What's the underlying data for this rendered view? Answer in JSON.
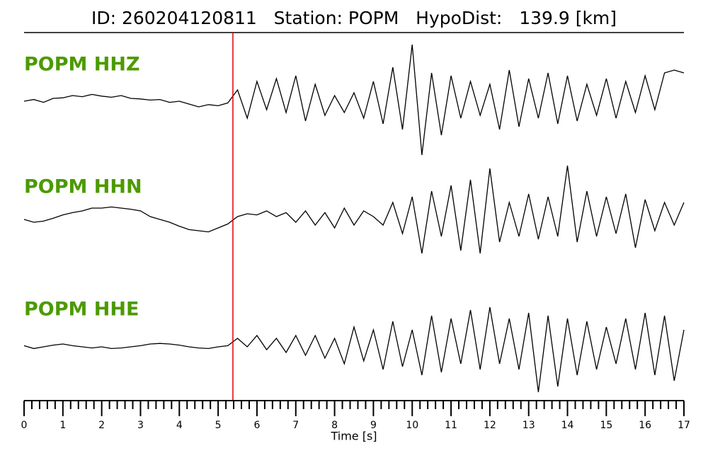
{
  "chart_data": {
    "type": "seismogram",
    "title": "ID: 260204120811   Station: POPM   HypoDist:   139.9 [km]",
    "xlabel": "Time [s]",
    "xlim": [
      0,
      17
    ],
    "xticks": [
      0,
      1,
      2,
      3,
      4,
      5,
      6,
      7,
      8,
      9,
      10,
      11,
      12,
      13,
      14,
      15,
      16,
      17
    ],
    "xminorticks": [
      0.2,
      0.4,
      0.6,
      0.8,
      1.2,
      1.4,
      1.6,
      1.8,
      2.2,
      2.4,
      2.6,
      2.8,
      3.2,
      3.4,
      3.6,
      3.8,
      4.2,
      4.4,
      4.6,
      4.8,
      5.2,
      5.4,
      5.6,
      5.8,
      6.2,
      6.4,
      6.6,
      6.8,
      7.2,
      7.4,
      7.6,
      7.8,
      8.2,
      8.4,
      8.6,
      8.8,
      9.2,
      9.4,
      9.6,
      9.8,
      10.2,
      10.4,
      10.6,
      10.8,
      11.2,
      11.4,
      11.6,
      11.8,
      12.2,
      12.4,
      12.6,
      12.8,
      13.2,
      13.4,
      13.6,
      13.8,
      14.2,
      14.4,
      14.6,
      14.8,
      15.2,
      15.4,
      15.6,
      15.8,
      16.2,
      16.4,
      16.6,
      16.8
    ],
    "pick": 5.38,
    "pick_color": "#e00000",
    "label_color": "#4c9a00",
    "x": [
      0,
      0.25,
      0.5,
      0.75,
      1,
      1.25,
      1.5,
      1.75,
      2,
      2.25,
      2.5,
      2.75,
      3,
      3.25,
      3.5,
      3.75,
      4,
      4.25,
      4.5,
      4.75,
      5,
      5.25,
      5.5,
      5.75,
      6,
      6.25,
      6.5,
      6.75,
      7,
      7.25,
      7.5,
      7.75,
      8,
      8.25,
      8.5,
      8.75,
      9,
      9.25,
      9.5,
      9.75,
      10,
      10.25,
      10.5,
      10.75,
      11,
      11.25,
      11.5,
      11.75,
      12,
      12.25,
      12.5,
      12.75,
      13,
      13.25,
      13.5,
      13.75,
      14,
      14.25,
      14.5,
      14.75,
      15,
      15.25,
      15.5,
      15.75,
      16,
      16.25,
      16.5,
      16.75,
      17
    ],
    "series": [
      {
        "name": "POPM HHZ",
        "color": "#000000",
        "values": [
          0,
          0.03,
          -0.02,
          0.05,
          0.06,
          0.1,
          0.08,
          0.12,
          0.09,
          0.07,
          0.1,
          0.05,
          0.04,
          0.02,
          0.03,
          -0.02,
          0.0,
          -0.05,
          -0.1,
          -0.06,
          -0.08,
          -0.03,
          0.2,
          -0.3,
          0.35,
          -0.15,
          0.4,
          -0.2,
          0.45,
          -0.35,
          0.3,
          -0.25,
          0.1,
          -0.2,
          0.15,
          -0.3,
          0.35,
          -0.4,
          0.6,
          -0.5,
          1.0,
          -0.95,
          0.5,
          -0.6,
          0.45,
          -0.3,
          0.35,
          -0.25,
          0.3,
          -0.5,
          0.55,
          -0.45,
          0.4,
          -0.3,
          0.5,
          -0.4,
          0.45,
          -0.35,
          0.3,
          -0.25,
          0.4,
          -0.3,
          0.35,
          -0.2,
          0.45,
          -0.15,
          0.5,
          0.55,
          0.5
        ]
      },
      {
        "name": "POPM HHN",
        "color": "#000000",
        "values": [
          0,
          -0.05,
          -0.03,
          0.02,
          0.08,
          0.12,
          0.15,
          0.2,
          0.2,
          0.22,
          0.2,
          0.18,
          0.15,
          0.05,
          0.0,
          -0.05,
          -0.12,
          -0.18,
          -0.2,
          -0.22,
          -0.15,
          -0.08,
          0.05,
          0.1,
          0.08,
          0.15,
          0.05,
          0.12,
          -0.05,
          0.15,
          -0.1,
          0.12,
          -0.15,
          0.2,
          -0.1,
          0.15,
          0.05,
          -0.1,
          0.3,
          -0.25,
          0.4,
          -0.6,
          0.5,
          -0.3,
          0.6,
          -0.55,
          0.7,
          -0.6,
          0.9,
          -0.4,
          0.3,
          -0.3,
          0.45,
          -0.35,
          0.4,
          -0.3,
          0.95,
          -0.4,
          0.5,
          -0.3,
          0.4,
          -0.25,
          0.45,
          -0.5,
          0.35,
          -0.2,
          0.3,
          -0.1,
          0.3
        ]
      },
      {
        "name": "POPM HHE",
        "color": "#000000",
        "values": [
          0.02,
          -0.03,
          0.0,
          0.03,
          0.05,
          0.02,
          0.0,
          -0.02,
          0.0,
          -0.03,
          -0.02,
          0.0,
          0.02,
          0.05,
          0.06,
          0.05,
          0.03,
          0.0,
          -0.02,
          -0.03,
          0.0,
          0.02,
          0.15,
          0.0,
          0.2,
          -0.05,
          0.15,
          -0.1,
          0.2,
          -0.15,
          0.2,
          -0.2,
          0.15,
          -0.3,
          0.35,
          -0.25,
          0.3,
          -0.4,
          0.45,
          -0.35,
          0.3,
          -0.5,
          0.55,
          -0.45,
          0.5,
          -0.3,
          0.65,
          -0.4,
          0.7,
          -0.3,
          0.5,
          -0.4,
          0.6,
          -0.8,
          0.55,
          -0.7,
          0.5,
          -0.5,
          0.45,
          -0.4,
          0.35,
          -0.3,
          0.5,
          -0.4,
          0.6,
          -0.5,
          0.55,
          -0.6,
          0.3
        ]
      }
    ]
  }
}
